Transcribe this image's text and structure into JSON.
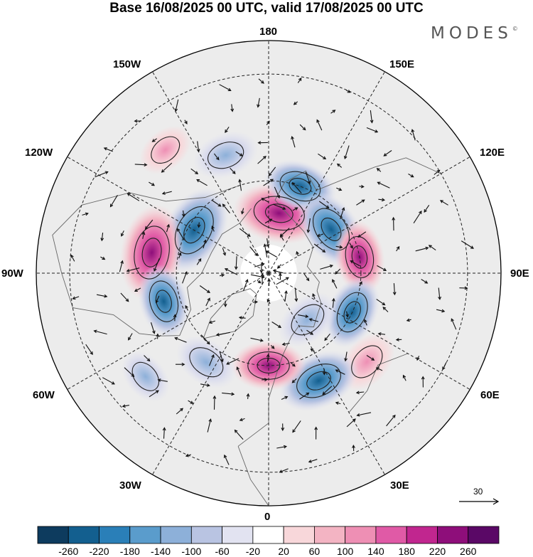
{
  "title": "Base 16/08/2025 00 UTC, valid 17/08/2025 00 UTC",
  "brand": "MODES",
  "brand_mark": "©",
  "longitude_labels": {
    "lon_180": "180",
    "lon_150e": "150E",
    "lon_120e": "120E",
    "lon_90e": "90E",
    "lon_60e": "60E",
    "lon_30e": "30E",
    "lon_0": "0",
    "lon_30w": "30W",
    "lon_60w": "60W",
    "lon_90w": "90W",
    "lon_120w": "120W",
    "lon_150w": "150W"
  },
  "reference_vector": {
    "label": "30"
  },
  "colorbar": {
    "ticks": [
      "-260",
      "-220",
      "-180",
      "-140",
      "-100",
      "-60",
      "-20",
      "20",
      "60",
      "100",
      "140",
      "180",
      "220",
      "260"
    ],
    "colors": [
      "#0d3b5e",
      "#135f8f",
      "#2a7fb8",
      "#5a9ccc",
      "#8db0d9",
      "#b9c4e2",
      "#e2e3f1",
      "#ffffff",
      "#f8d7da",
      "#f3b4c3",
      "#ee8fb4",
      "#e05aa6",
      "#c1268f",
      "#8e0e7a",
      "#5a0866"
    ]
  },
  "anomalies": [
    {
      "id": "neg-120w",
      "sign": "neg",
      "level": "-180",
      "lon": -120,
      "lat": 62
    },
    {
      "id": "pos-100w",
      "sign": "pos",
      "level": "220",
      "lon": -100,
      "lat": 52
    },
    {
      "id": "neg-75w",
      "sign": "neg",
      "level": "-100",
      "lon": -75,
      "lat": 55
    },
    {
      "id": "pos-170e",
      "sign": "pos",
      "level": "180",
      "lon": 170,
      "lat": 70
    },
    {
      "id": "neg-140e",
      "sign": "neg",
      "level": "-100",
      "lon": 160,
      "lat": 60
    },
    {
      "id": "neg-125e",
      "sign": "neg",
      "level": "-140",
      "lon": 125,
      "lat": 65
    },
    {
      "id": "pos-100e",
      "sign": "pos",
      "level": "100",
      "lon": 100,
      "lat": 60
    },
    {
      "id": "neg-65e",
      "sign": "neg",
      "level": "-100",
      "lon": 65,
      "lat": 60
    },
    {
      "id": "pos-50e",
      "sign": "pos",
      "level": "60",
      "lon": 48,
      "lat": 48
    },
    {
      "id": "neg-25e",
      "sign": "neg",
      "level": "-140",
      "lon": 25,
      "lat": 52
    },
    {
      "id": "neg-35e",
      "sign": "neg",
      "level": "-60",
      "lon": 40,
      "lat": 70
    },
    {
      "id": "pos-0",
      "sign": "pos",
      "level": "100",
      "lon": 0,
      "lat": 60
    },
    {
      "id": "neg-35w",
      "sign": "neg",
      "level": "-60",
      "lon": -35,
      "lat": 55
    },
    {
      "id": "neg-50w",
      "sign": "neg",
      "level": "-20",
      "lon": -50,
      "lat": 40
    },
    {
      "id": "neg-160w",
      "sign": "neg",
      "level": "-60",
      "lon": -160,
      "lat": 50
    },
    {
      "id": "pos-150w",
      "sign": "pos",
      "level": "20",
      "lon": -140,
      "lat": 40
    }
  ]
}
